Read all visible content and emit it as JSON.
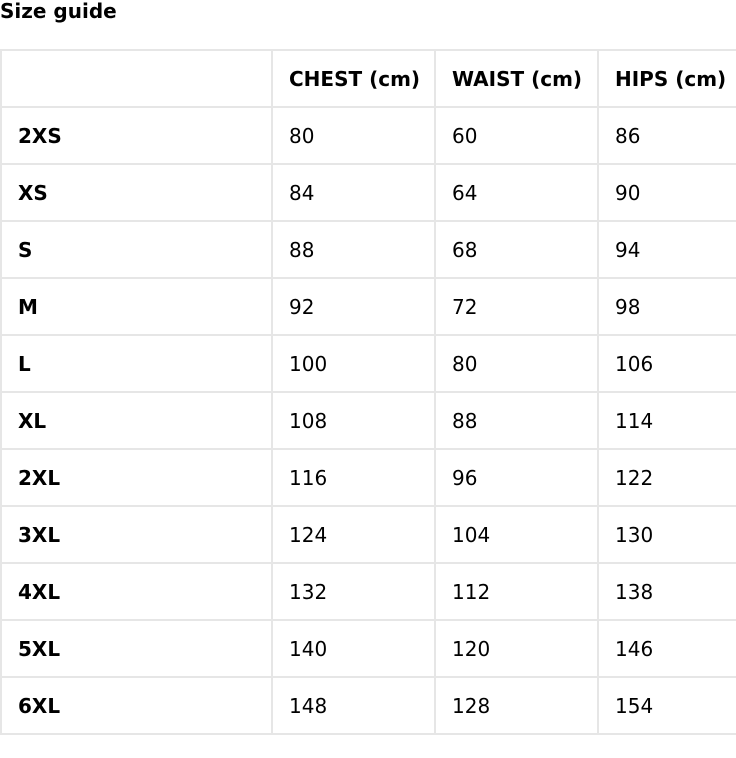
{
  "title": "Size guide",
  "table": {
    "headers": [
      "",
      "CHEST (cm)",
      "WAIST (cm)",
      "HIPS (cm)"
    ],
    "rows": [
      [
        "2XS",
        "80",
        "60",
        "86"
      ],
      [
        "XS",
        "84",
        "64",
        "90"
      ],
      [
        "S",
        "88",
        "68",
        "94"
      ],
      [
        "M",
        "92",
        "72",
        "98"
      ],
      [
        "L",
        "100",
        "80",
        "106"
      ],
      [
        "XL",
        "108",
        "88",
        "114"
      ],
      [
        "2XL",
        "116",
        "96",
        "122"
      ],
      [
        "3XL",
        "124",
        "104",
        "130"
      ],
      [
        "4XL",
        "132",
        "112",
        "138"
      ],
      [
        "5XL",
        "140",
        "120",
        "146"
      ],
      [
        "6XL",
        "148",
        "128",
        "154"
      ]
    ]
  }
}
